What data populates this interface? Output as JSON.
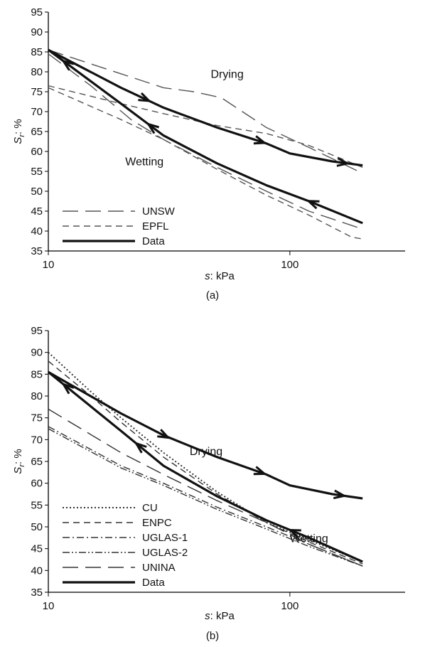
{
  "chart_data": [
    {
      "type": "line",
      "panel_label": "(a)",
      "xlabel_var": "s",
      "xlabel_unit": ": kPa",
      "ylabel_var": "S",
      "ylabel_sub": "r",
      "ylabel_unit": ": %",
      "x_scale": "log",
      "xlim": [
        10,
        300
      ],
      "ylim": [
        35,
        95
      ],
      "x_ticks": [
        10,
        100
      ],
      "y_ticks": [
        35,
        40,
        45,
        50,
        55,
        60,
        65,
        70,
        75,
        80,
        85,
        90,
        95
      ],
      "legend_position": "bottom-left",
      "annotations": [
        {
          "text": "Drying",
          "x": 55,
          "y": 78.5
        },
        {
          "text": "Wetting",
          "x": 25,
          "y": 56.5
        }
      ],
      "series": [
        {
          "name": "UNSW",
          "style": "long-dash",
          "color": "#555555",
          "points": [
            [
              10,
              85.5
            ],
            [
              20,
              79.5
            ],
            [
              30,
              76
            ],
            [
              40,
              75
            ],
            [
              52,
              73.5
            ],
            [
              80,
              66
            ],
            [
              120,
              61
            ],
            [
              200,
              54.5
            ]
          ],
          "curves": [
            [
              [
                10,
                85.5
              ],
              [
                20,
                79.5
              ],
              [
                30,
                76
              ],
              [
                40,
                75
              ],
              [
                52,
                73.5
              ],
              [
                80,
                66
              ],
              [
                120,
                61
              ],
              [
                200,
                54.5
              ]
            ],
            [
              [
                10,
                84.5
              ],
              [
                15,
                76.5
              ],
              [
                22,
                68
              ],
              [
                30,
                63
              ],
              [
                50,
                56
              ],
              [
                80,
                50
              ],
              [
                120,
                45
              ],
              [
                200,
                40.5
              ]
            ]
          ]
        },
        {
          "name": "EPFL",
          "style": "short-dash",
          "color": "#555555",
          "points": [
            [
              10,
              76.5
            ],
            [
              20,
              72
            ],
            [
              30,
              69.5
            ],
            [
              50,
              66.5
            ],
            [
              80,
              64.5
            ],
            [
              120,
              61.5
            ],
            [
              200,
              56
            ]
          ],
          "curves": [
            [
              [
                10,
                76.5
              ],
              [
                20,
                72
              ],
              [
                30,
                69.5
              ],
              [
                50,
                66.5
              ],
              [
                80,
                64.5
              ],
              [
                120,
                61.5
              ],
              [
                200,
                56
              ]
            ],
            [
              [
                10,
                76
              ],
              [
                20,
                68
              ],
              [
                30,
                63
              ],
              [
                50,
                55.5
              ],
              [
                80,
                49
              ],
              [
                120,
                44
              ],
              [
                180,
                38.5
              ],
              [
                200,
                38
              ]
            ]
          ]
        },
        {
          "name": "Data",
          "style": "solid-thick",
          "color": "#111111",
          "points": [
            [
              10,
              85.5
            ],
            [
              20,
              76
            ],
            [
              30,
              71
            ],
            [
              50,
              66
            ],
            [
              80,
              62
            ],
            [
              100,
              59.5
            ],
            [
              150,
              57.5
            ],
            [
              200,
              56.5
            ]
          ],
          "curves": [
            [
              [
                10,
                85.5
              ],
              [
                20,
                76
              ],
              [
                30,
                71
              ],
              [
                50,
                66
              ],
              [
                80,
                62
              ],
              [
                100,
                59.5
              ],
              [
                150,
                57.5
              ],
              [
                200,
                56.5
              ]
            ],
            [
              [
                10,
                85.5
              ],
              [
                20,
                72
              ],
              [
                30,
                64
              ],
              [
                50,
                57
              ],
              [
                80,
                51.5
              ],
              [
                120,
                47.5
              ],
              [
                200,
                42
              ]
            ]
          ],
          "arrows": [
            {
              "curve": 0,
              "at": 25
            },
            {
              "curve": 0,
              "at": 75
            },
            {
              "curve": 0,
              "at": 165
            },
            {
              "curve": 1,
              "at": 27,
              "reverse": true
            },
            {
              "curve": 1,
              "at": 125,
              "reverse": true
            },
            {
              "curve": 1,
              "at": 12,
              "reverse": true
            }
          ]
        }
      ]
    },
    {
      "type": "line",
      "panel_label": "(b)",
      "xlabel_var": "s",
      "xlabel_unit": ": kPa",
      "ylabel_var": "S",
      "ylabel_sub": "r",
      "ylabel_unit": ": %",
      "x_scale": "log",
      "xlim": [
        10,
        300
      ],
      "ylim": [
        35,
        95
      ],
      "x_ticks": [
        10,
        100
      ],
      "y_ticks": [
        35,
        40,
        45,
        50,
        55,
        60,
        65,
        70,
        75,
        80,
        85,
        90,
        95
      ],
      "legend_position": "bottom-left",
      "annotations": [
        {
          "text": "Drying",
          "x": 45,
          "y": 66.5
        },
        {
          "text": "Wetting",
          "x": 120,
          "y": 46.5
        }
      ],
      "series": [
        {
          "name": "CU",
          "style": "dotted",
          "color": "#333333",
          "points": [
            [
              10,
              90
            ],
            [
              15,
              81
            ],
            [
              20,
              75
            ],
            [
              30,
              67
            ],
            [
              50,
              58
            ],
            [
              80,
              51
            ],
            [
              120,
              47
            ],
            [
              200,
              42
            ]
          ]
        },
        {
          "name": "ENPC",
          "style": "short-dash",
          "color": "#333333",
          "points": [
            [
              10,
              88
            ],
            [
              15,
              80
            ],
            [
              20,
              74
            ],
            [
              30,
              66
            ],
            [
              50,
              57.5
            ],
            [
              80,
              51
            ],
            [
              120,
              46.5
            ],
            [
              200,
              41.5
            ]
          ]
        },
        {
          "name": "UGLAS-1",
          "style": "dash-dot",
          "color": "#333333",
          "points": [
            [
              10,
              73
            ],
            [
              20,
              64
            ],
            [
              30,
              60
            ],
            [
              50,
              54.5
            ],
            [
              80,
              50
            ],
            [
              120,
              46
            ],
            [
              200,
              41
            ]
          ]
        },
        {
          "name": "UGLAS-2",
          "style": "dash-dot-dot",
          "color": "#333333",
          "points": [
            [
              10,
              72.5
            ],
            [
              20,
              63.5
            ],
            [
              30,
              59.5
            ],
            [
              50,
              54
            ],
            [
              80,
              49.5
            ],
            [
              120,
              45.5
            ],
            [
              200,
              41
            ]
          ]
        },
        {
          "name": "UNINA",
          "style": "long-dash",
          "color": "#333333",
          "points": [
            [
              10,
              77
            ],
            [
              20,
              67
            ],
            [
              30,
              62
            ],
            [
              50,
              56
            ],
            [
              80,
              51
            ],
            [
              120,
              46
            ],
            [
              200,
              41
            ]
          ]
        },
        {
          "name": "Data",
          "style": "solid-thick",
          "color": "#111111",
          "points": [
            [
              10,
              85.5
            ],
            [
              20,
              76
            ],
            [
              30,
              71
            ],
            [
              50,
              66
            ],
            [
              80,
              62
            ],
            [
              100,
              59.5
            ],
            [
              150,
              57.5
            ],
            [
              200,
              56.5
            ]
          ],
          "curves": [
            [
              [
                10,
                85.5
              ],
              [
                20,
                76
              ],
              [
                30,
                71
              ],
              [
                50,
                66
              ],
              [
                80,
                62
              ],
              [
                100,
                59.5
              ],
              [
                150,
                57.5
              ],
              [
                200,
                56.5
              ]
            ],
            [
              [
                10,
                85.5
              ],
              [
                20,
                72
              ],
              [
                30,
                64
              ],
              [
                50,
                57
              ],
              [
                80,
                51.5
              ],
              [
                120,
                47.5
              ],
              [
                200,
                42
              ]
            ]
          ],
          "arrows": [
            {
              "curve": 0,
              "at": 30
            },
            {
              "curve": 0,
              "at": 75
            },
            {
              "curve": 0,
              "at": 160
            },
            {
              "curve": 1,
              "at": 24,
              "reverse": true
            },
            {
              "curve": 1,
              "at": 105,
              "reverse": true
            },
            {
              "curve": 1,
              "at": 12,
              "reverse": true
            }
          ]
        }
      ]
    }
  ]
}
